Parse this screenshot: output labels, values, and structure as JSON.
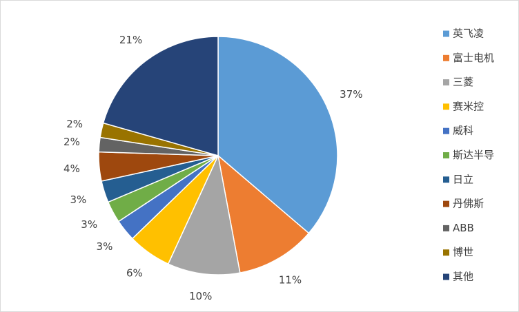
{
  "chart_data": {
    "type": "pie",
    "categories": [
      "英飞凌",
      "富士电机",
      "三菱",
      "赛米控",
      "威科",
      "斯达半导",
      "日立",
      "丹佛斯",
      "ABB",
      "博世",
      "其他"
    ],
    "values": [
      37,
      11,
      10,
      6,
      3,
      3,
      3,
      4,
      2,
      2,
      21
    ],
    "value_labels": [
      "37%",
      "11%",
      "10%",
      "6%",
      "3%",
      "3%",
      "3%",
      "4%",
      "2%",
      "2%",
      "21%"
    ],
    "colors": [
      "#5b9bd5",
      "#ed7d31",
      "#a5a5a5",
      "#ffc000",
      "#4472c4",
      "#70ad47",
      "#255e91",
      "#9e480e",
      "#636363",
      "#997300",
      "#264478"
    ],
    "legend": "right"
  }
}
